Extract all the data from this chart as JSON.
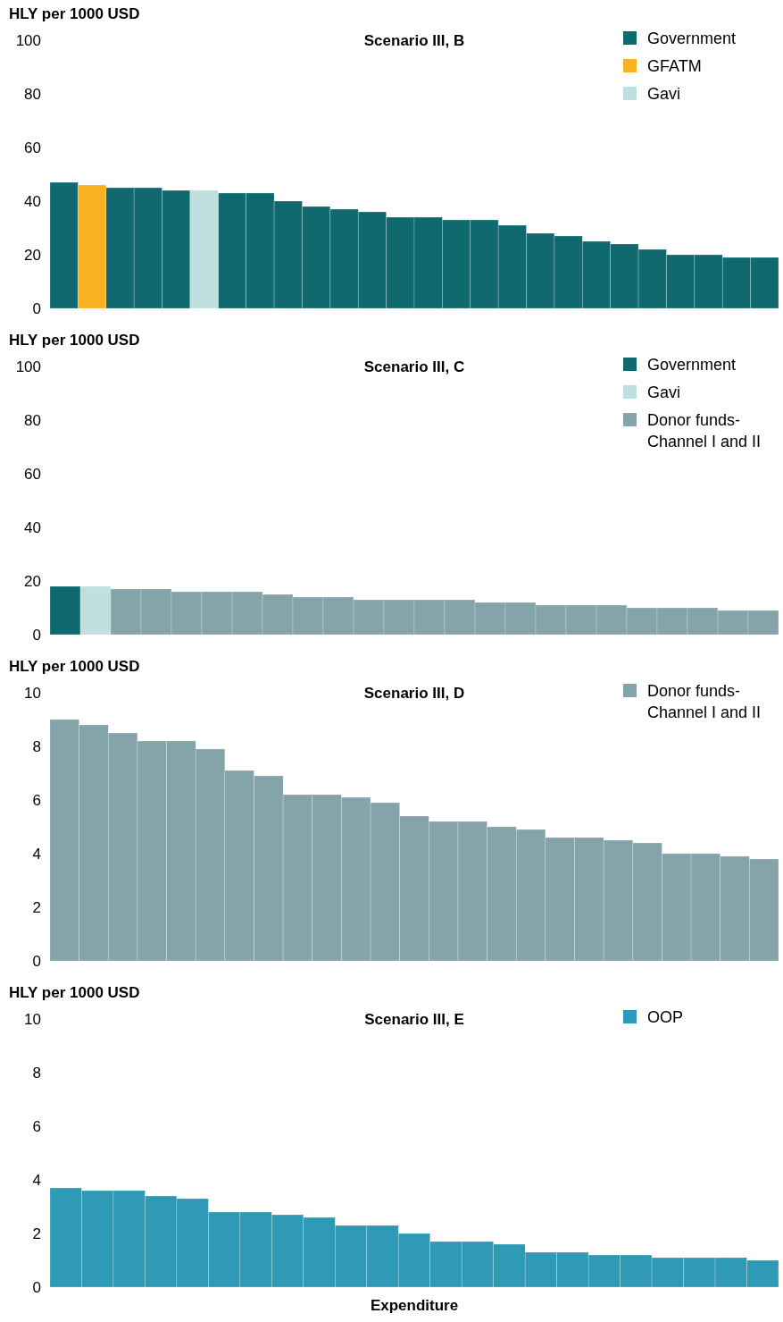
{
  "chart_data": [
    {
      "type": "bar",
      "stacked": true,
      "title": "Scenario III, B",
      "ylabel": "HLY per 1000 USD",
      "ylim": [
        0,
        100
      ],
      "yticks": [
        0,
        20,
        40,
        60,
        80,
        100
      ],
      "tick_labels": "y",
      "legend": "top right",
      "categories": [
        null,
        null,
        null,
        null,
        null,
        null,
        null,
        null,
        null,
        null,
        null,
        null,
        null,
        null,
        null,
        null,
        null,
        null,
        null,
        null,
        null,
        null,
        null,
        null,
        null,
        null
      ],
      "series": [
        {
          "name": "Government",
          "color": "#116970",
          "values": [
            47,
            null,
            45,
            45,
            44,
            null,
            43,
            43,
            40,
            38,
            37,
            36,
            34,
            34,
            33,
            33,
            31,
            28,
            27,
            25,
            24,
            22,
            20,
            20,
            19,
            19
          ]
        },
        {
          "name": "GFATM",
          "color": "#f9b122",
          "values": [
            null,
            46,
            null,
            null,
            null,
            null,
            null,
            null,
            null,
            null,
            null,
            null,
            null,
            null,
            null,
            null,
            null,
            null,
            null,
            null,
            null,
            null,
            null,
            null,
            null,
            null
          ]
        },
        {
          "name": "Gavi",
          "color": "#bfdfe0",
          "values": [
            null,
            null,
            null,
            null,
            null,
            44,
            null,
            null,
            null,
            null,
            null,
            null,
            null,
            null,
            null,
            null,
            null,
            null,
            null,
            null,
            null,
            null,
            null,
            null,
            null,
            null
          ]
        }
      ]
    },
    {
      "type": "bar",
      "stacked": true,
      "title": "Scenario III, C",
      "ylabel": "HLY per 1000 USD",
      "ylim": [
        0,
        100
      ],
      "yticks": [
        0,
        20,
        40,
        60,
        80,
        100
      ],
      "tick_labels": "y",
      "legend": "top right",
      "categories": [
        null,
        null,
        null,
        null,
        null,
        null,
        null,
        null,
        null,
        null,
        null,
        null,
        null,
        null,
        null,
        null,
        null,
        null,
        null,
        null,
        null,
        null,
        null,
        null
      ],
      "series": [
        {
          "name": "Government",
          "color": "#116970",
          "values": [
            18,
            null,
            null,
            null,
            null,
            null,
            null,
            null,
            null,
            null,
            null,
            null,
            null,
            null,
            null,
            null,
            null,
            null,
            null,
            null,
            null,
            null,
            null,
            null
          ]
        },
        {
          "name": "Gavi",
          "color": "#bfdfe0",
          "values": [
            null,
            18,
            null,
            null,
            null,
            null,
            null,
            null,
            null,
            null,
            null,
            null,
            null,
            null,
            null,
            null,
            null,
            null,
            null,
            null,
            null,
            null,
            null,
            null
          ]
        },
        {
          "name": "Donor funds-Channel I and II",
          "color": "#84a4aa",
          "values": [
            null,
            null,
            17,
            17,
            16,
            16,
            16,
            15,
            14,
            14,
            13,
            13,
            13,
            13,
            12,
            12,
            11,
            11,
            11,
            10,
            10,
            10,
            9,
            9
          ]
        }
      ]
    },
    {
      "type": "bar",
      "title": "Scenario III, D",
      "ylabel": "HLY per 1000 USD",
      "ylim": [
        0,
        10
      ],
      "yticks": [
        0,
        2,
        4,
        6,
        8,
        10
      ],
      "tick_labels": "y",
      "legend": "top right",
      "categories": [
        null,
        null,
        null,
        null,
        null,
        null,
        null,
        null,
        null,
        null,
        null,
        null,
        null,
        null,
        null,
        null,
        null,
        null,
        null,
        null,
        null,
        null,
        null,
        null,
        null
      ],
      "series": [
        {
          "name": "Donor funds-Channel I and II",
          "color": "#84a4aa",
          "values": [
            9.0,
            8.8,
            8.5,
            8.2,
            8.2,
            7.9,
            7.1,
            6.9,
            6.2,
            6.2,
            6.1,
            5.9,
            5.4,
            5.2,
            5.2,
            5.0,
            4.9,
            4.6,
            4.6,
            4.5,
            4.4,
            4.0,
            4.0,
            3.9,
            3.8
          ]
        }
      ]
    },
    {
      "type": "bar",
      "title": "Scenario III, E",
      "ylabel": "HLY per 1000 USD",
      "xlabel": "Expenditure",
      "ylim": [
        0,
        10
      ],
      "yticks": [
        0,
        2,
        4,
        6,
        8,
        10
      ],
      "tick_labels": "y",
      "legend": "top right",
      "categories": [
        null,
        null,
        null,
        null,
        null,
        null,
        null,
        null,
        null,
        null,
        null,
        null,
        null,
        null,
        null,
        null,
        null,
        null,
        null,
        null,
        null,
        null,
        null
      ],
      "series": [
        {
          "name": "OOP",
          "color": "#2e9ab5",
          "values": [
            3.7,
            3.6,
            3.6,
            3.4,
            3.3,
            2.8,
            2.8,
            2.7,
            2.6,
            2.3,
            2.3,
            2.0,
            1.7,
            1.7,
            1.6,
            1.3,
            1.3,
            1.2,
            1.2,
            1.1,
            1.1,
            1.1,
            1.0
          ]
        }
      ]
    }
  ]
}
